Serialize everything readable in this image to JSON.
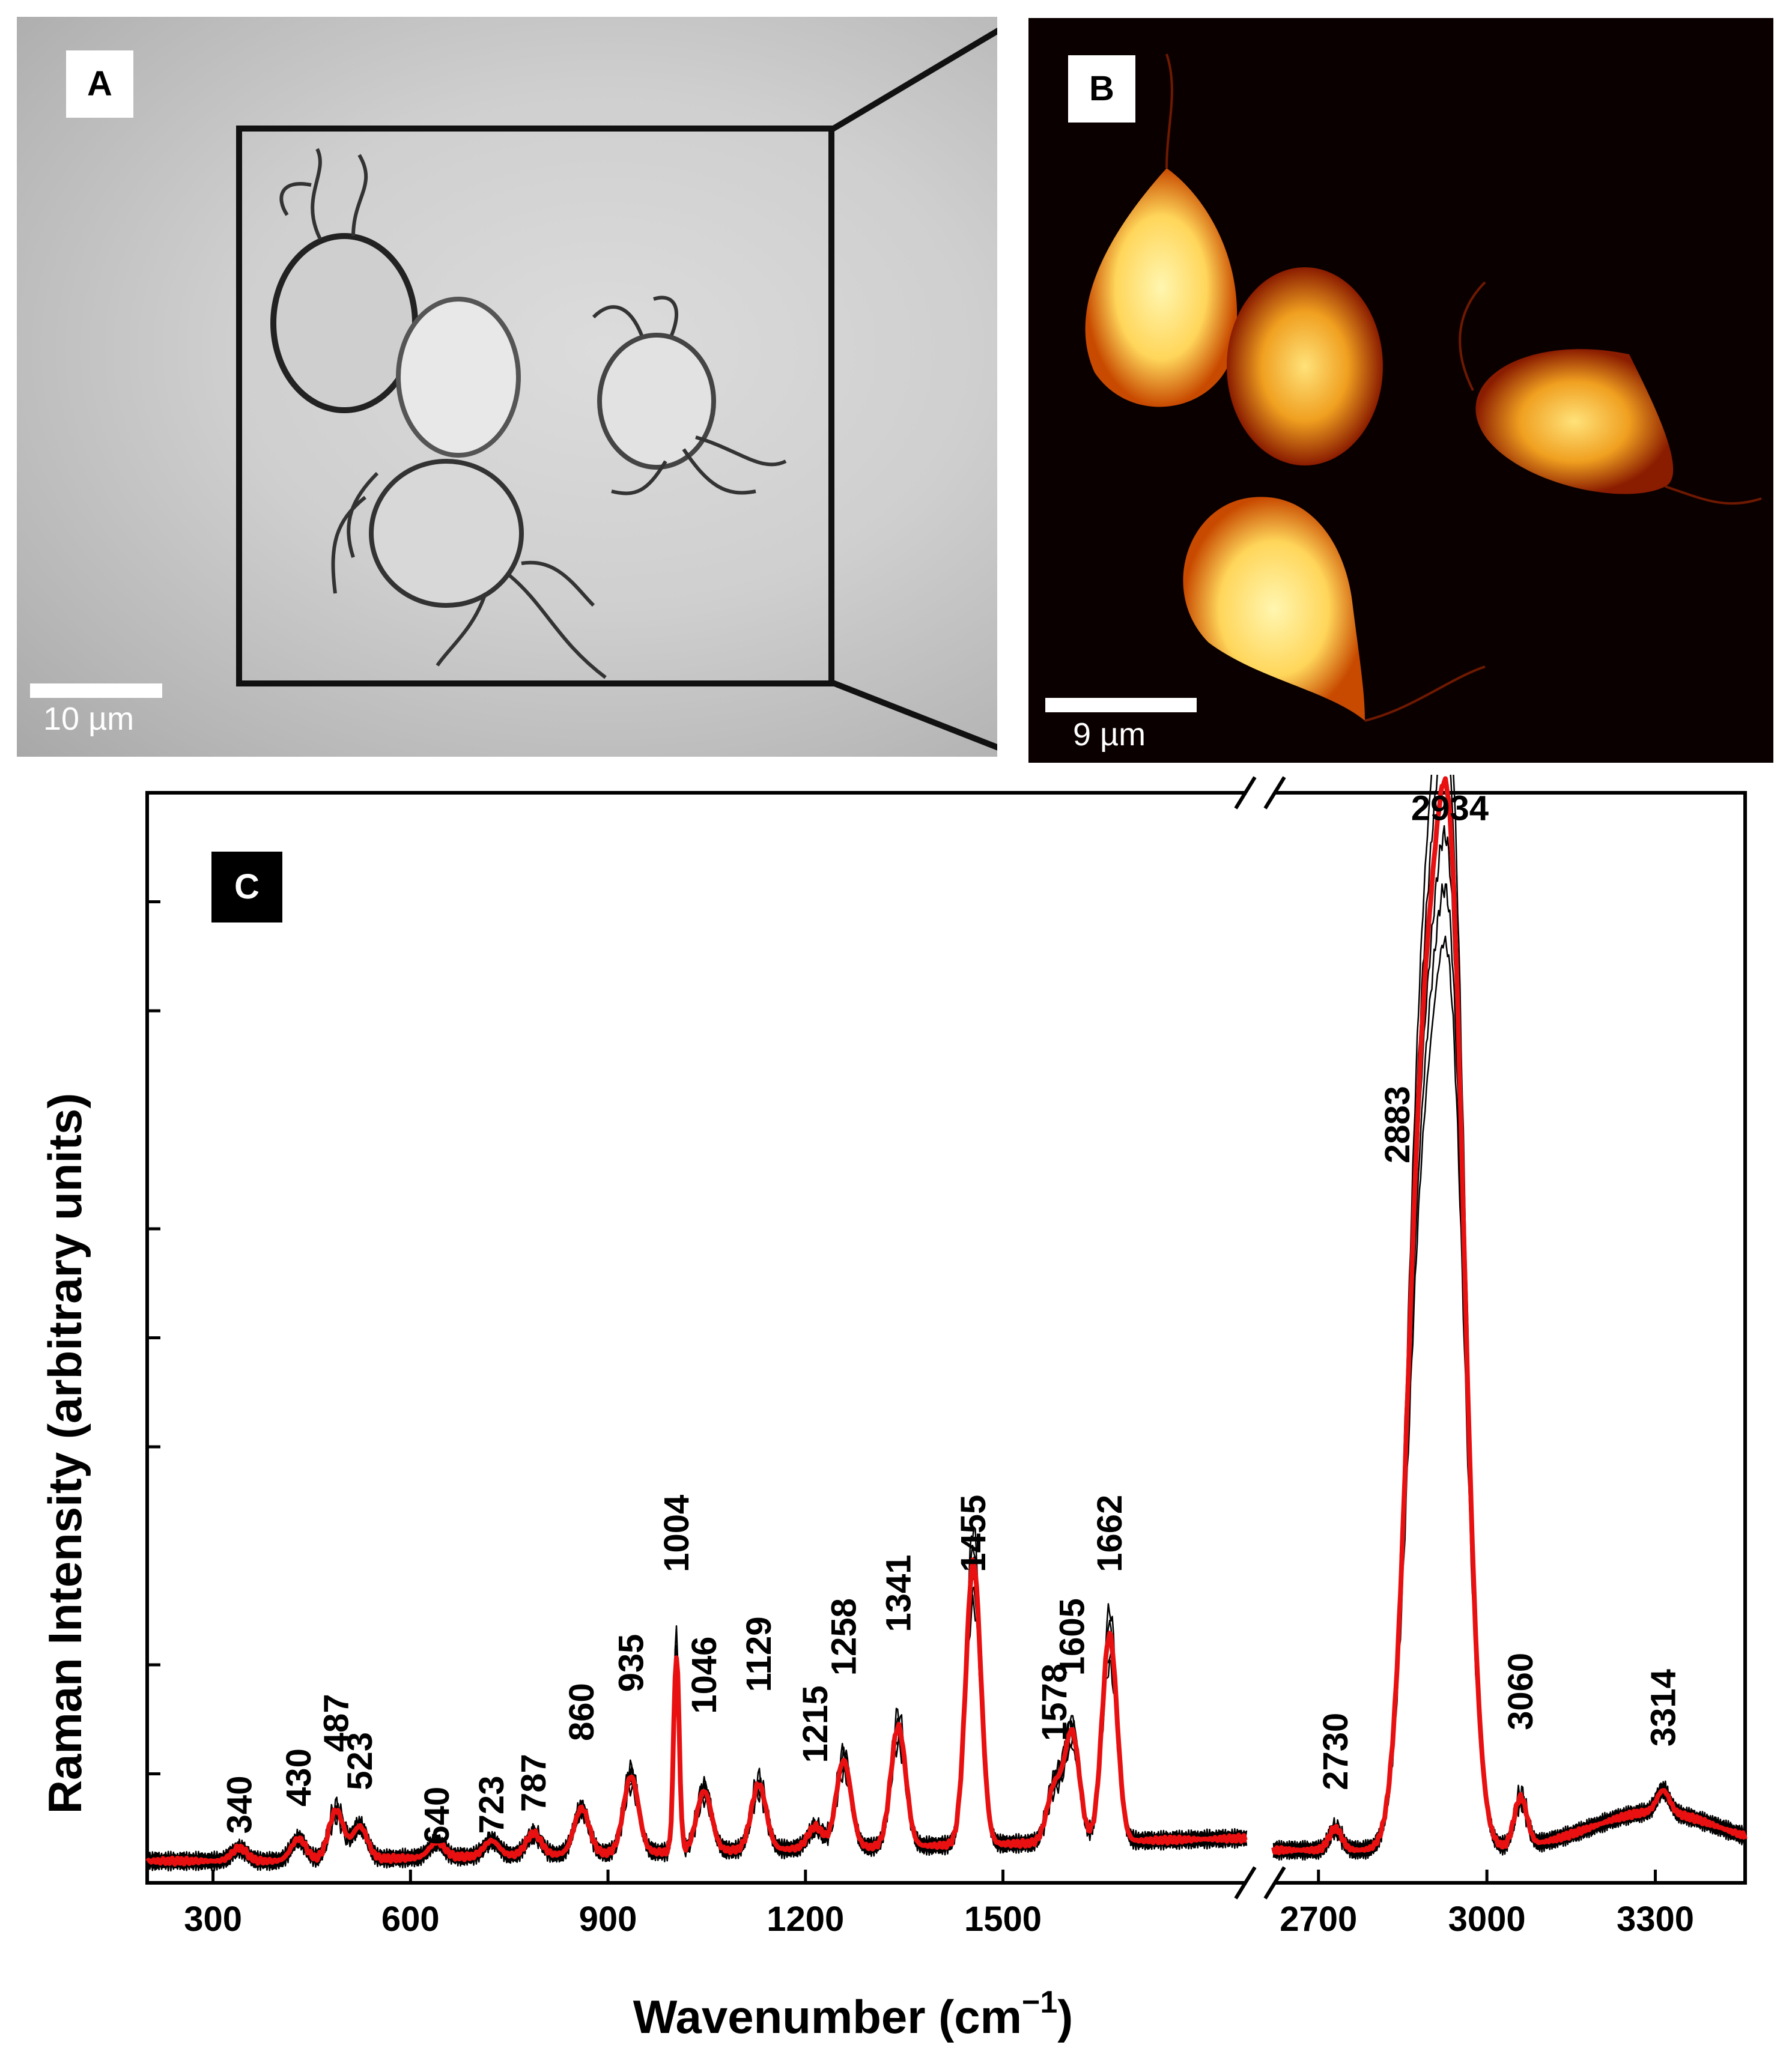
{
  "panel_a": {
    "letter": "A",
    "scale_label": "10 µm"
  },
  "panel_b": {
    "letter": "B",
    "scale_label": "9 µm"
  },
  "panel_c": {
    "letter": "C"
  },
  "chart_data": {
    "type": "line",
    "xlabel": "Wavenumber (cm",
    "xlabel_sup": "−1",
    "xlabel_close": ")",
    "ylabel": "Raman Intensity (arbitrary units)",
    "x_segments": [
      {
        "range": [
          200,
          1870
        ],
        "ticks": [
          "300",
          "600",
          "900",
          "1200",
          "1500"
        ],
        "tick_values": [
          300,
          600,
          900,
          1200,
          1500
        ]
      },
      {
        "range": [
          2620,
          3460
        ],
        "ticks": [
          "2700",
          "3000",
          "3300"
        ],
        "tick_values": [
          2700,
          3000,
          3300
        ]
      }
    ],
    "ylim": [
      0,
      1.0
    ],
    "y_ticks": [
      0.1,
      0.2,
      0.4,
      0.5,
      0.6,
      0.8,
      0.9
    ],
    "grid": false,
    "peak_labels": [
      {
        "text": "340",
        "x": 340,
        "y": 0.045
      },
      {
        "text": "430",
        "x": 430,
        "y": 0.07
      },
      {
        "text": "487",
        "x": 487,
        "y": 0.12
      },
      {
        "text": "523",
        "x": 523,
        "y": 0.085
      },
      {
        "text": "640",
        "x": 640,
        "y": 0.035
      },
      {
        "text": "723",
        "x": 723,
        "y": 0.045
      },
      {
        "text": "787",
        "x": 787,
        "y": 0.065
      },
      {
        "text": "860",
        "x": 860,
        "y": 0.13
      },
      {
        "text": "935",
        "x": 935,
        "y": 0.175
      },
      {
        "text": "1004",
        "x": 1004,
        "y": 0.285
      },
      {
        "text": "1046",
        "x": 1046,
        "y": 0.155
      },
      {
        "text": "1129",
        "x": 1129,
        "y": 0.175
      },
      {
        "text": "1215",
        "x": 1215,
        "y": 0.11
      },
      {
        "text": "1258",
        "x": 1258,
        "y": 0.19
      },
      {
        "text": "1341",
        "x": 1341,
        "y": 0.23
      },
      {
        "text": "1455",
        "x": 1455,
        "y": 0.285
      },
      {
        "text": "1578",
        "x": 1578,
        "y": 0.13
      },
      {
        "text": "1605",
        "x": 1605,
        "y": 0.19
      },
      {
        "text": "1662",
        "x": 1662,
        "y": 0.285
      },
      {
        "text": "2730",
        "x": 2730,
        "y": 0.085
      },
      {
        "text": "2883",
        "x": 2883,
        "y": 0.66,
        "offset": -40
      },
      {
        "text": "2934",
        "x": 2934,
        "y": 0.975
      },
      {
        "text": "3060",
        "x": 3060,
        "y": 0.14
      },
      {
        "text": "3314",
        "x": 3314,
        "y": 0.125
      }
    ],
    "mean_peaks": [
      [
        340,
        0.012
      ],
      [
        430,
        0.02
      ],
      [
        487,
        0.045
      ],
      [
        523,
        0.03
      ],
      [
        640,
        0.014
      ],
      [
        723,
        0.014
      ],
      [
        787,
        0.02
      ],
      [
        860,
        0.042
      ],
      [
        935,
        0.07
      ],
      [
        1004,
        0.18
      ],
      [
        1046,
        0.055
      ],
      [
        1129,
        0.06
      ],
      [
        1215,
        0.02
      ],
      [
        1258,
        0.08
      ],
      [
        1341,
        0.11
      ],
      [
        1455,
        0.26
      ],
      [
        1578,
        0.05
      ],
      [
        1605,
        0.1
      ],
      [
        1662,
        0.19
      ],
      [
        2730,
        0.02
      ],
      [
        2883,
        0.6
      ],
      [
        2934,
        0.85
      ],
      [
        3060,
        0.045
      ],
      [
        3314,
        0.02
      ]
    ],
    "series": [
      {
        "color": "#e81010",
        "role": "mean"
      },
      {
        "color": "#000000",
        "role": "individual"
      }
    ]
  }
}
